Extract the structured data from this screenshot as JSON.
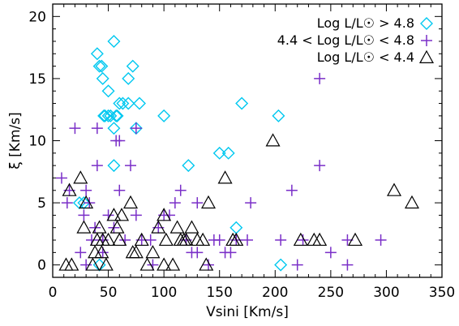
{
  "chart_data": {
    "type": "scatter",
    "title": "",
    "xlabel": "Vsini [Km/s]",
    "ylabel": "ξ [Km/s]",
    "xlim": [
      0,
      350
    ],
    "ylim": [
      -1,
      21
    ],
    "xticks": [
      0,
      50,
      100,
      150,
      200,
      250,
      300,
      350
    ],
    "yticks": [
      0,
      5,
      10,
      15,
      20
    ],
    "grid": false,
    "legend_position": "top-right",
    "series": [
      {
        "name": "Log L/L☉ > 4.8",
        "marker": "diamond",
        "color": "#00c8f0",
        "points": [
          [
            40,
            17
          ],
          [
            42,
            16
          ],
          [
            44,
            16
          ],
          [
            45,
            15
          ],
          [
            47,
            12
          ],
          [
            46,
            12
          ],
          [
            50,
            14
          ],
          [
            50,
            12
          ],
          [
            52,
            12
          ],
          [
            55,
            18
          ],
          [
            58,
            12
          ],
          [
            60,
            13
          ],
          [
            57,
            12
          ],
          [
            55,
            11
          ],
          [
            63,
            13
          ],
          [
            68,
            15
          ],
          [
            68,
            13
          ],
          [
            72,
            16
          ],
          [
            75,
            11
          ],
          [
            78,
            13
          ],
          [
            55,
            8
          ],
          [
            100,
            12
          ],
          [
            122,
            8
          ],
          [
            150,
            9
          ],
          [
            158,
            9
          ],
          [
            170,
            13
          ],
          [
            203,
            12
          ],
          [
            28,
            5
          ],
          [
            24,
            5
          ],
          [
            165,
            3
          ],
          [
            205,
            0
          ],
          [
            42,
            0
          ]
        ]
      },
      {
        "name": "4.4 < Log L/L☉ < 4.8",
        "marker": "plus",
        "color": "#7a2fc8",
        "points": [
          [
            8,
            7
          ],
          [
            13,
            5
          ],
          [
            15,
            6
          ],
          [
            20,
            11
          ],
          [
            30,
            6
          ],
          [
            28,
            4
          ],
          [
            33,
            5
          ],
          [
            38,
            3
          ],
          [
            40,
            11
          ],
          [
            40,
            8
          ],
          [
            45,
            2
          ],
          [
            50,
            4
          ],
          [
            55,
            3
          ],
          [
            57,
            10
          ],
          [
            60,
            10
          ],
          [
            65,
            2
          ],
          [
            70,
            8
          ],
          [
            75,
            11
          ],
          [
            80,
            2
          ],
          [
            88,
            2
          ],
          [
            90,
            0
          ],
          [
            100,
            4
          ],
          [
            105,
            4
          ],
          [
            110,
            5
          ],
          [
            115,
            6
          ],
          [
            120,
            2
          ],
          [
            125,
            1
          ],
          [
            130,
            5
          ],
          [
            140,
            0
          ],
          [
            150,
            2
          ],
          [
            155,
            1
          ],
          [
            160,
            1
          ],
          [
            165,
            2
          ],
          [
            175,
            2
          ],
          [
            178,
            5
          ],
          [
            205,
            2
          ],
          [
            215,
            6
          ],
          [
            220,
            0
          ],
          [
            225,
            2
          ],
          [
            240,
            15
          ],
          [
            240,
            8
          ],
          [
            250,
            1
          ],
          [
            265,
            0
          ],
          [
            265,
            2
          ],
          [
            295,
            2
          ],
          [
            25,
            1
          ],
          [
            35,
            2
          ],
          [
            45,
            1
          ],
          [
            60,
            6
          ],
          [
            75,
            4
          ],
          [
            95,
            3
          ],
          [
            130,
            1
          ],
          [
            145,
            2
          ],
          [
            30,
            0
          ]
        ]
      },
      {
        "name": "Log L/L☉ < 4.4",
        "marker": "triangle",
        "color": "#000000",
        "points": [
          [
            12,
            0
          ],
          [
            15,
            6
          ],
          [
            17,
            0
          ],
          [
            25,
            7
          ],
          [
            28,
            3
          ],
          [
            30,
            5
          ],
          [
            36,
            0
          ],
          [
            38,
            1
          ],
          [
            40,
            2
          ],
          [
            42,
            3
          ],
          [
            44,
            1
          ],
          [
            48,
            0
          ],
          [
            50,
            2
          ],
          [
            55,
            4
          ],
          [
            58,
            3
          ],
          [
            60,
            2
          ],
          [
            62,
            4
          ],
          [
            70,
            5
          ],
          [
            72,
            1
          ],
          [
            75,
            1
          ],
          [
            80,
            2
          ],
          [
            85,
            0
          ],
          [
            90,
            1
          ],
          [
            95,
            3
          ],
          [
            100,
            4
          ],
          [
            102,
            2
          ],
          [
            108,
            0
          ],
          [
            112,
            3
          ],
          [
            115,
            2
          ],
          [
            118,
            2
          ],
          [
            125,
            3
          ],
          [
            130,
            2
          ],
          [
            135,
            2
          ],
          [
            138,
            0
          ],
          [
            140,
            5
          ],
          [
            155,
            7
          ],
          [
            162,
            2
          ],
          [
            165,
            2
          ],
          [
            198,
            10
          ],
          [
            223,
            2
          ],
          [
            235,
            2
          ],
          [
            240,
            2
          ],
          [
            272,
            2
          ],
          [
            307,
            6
          ],
          [
            323,
            5
          ],
          [
            45,
            2
          ],
          [
            100,
            0
          ],
          [
            120,
            2
          ]
        ]
      }
    ]
  }
}
